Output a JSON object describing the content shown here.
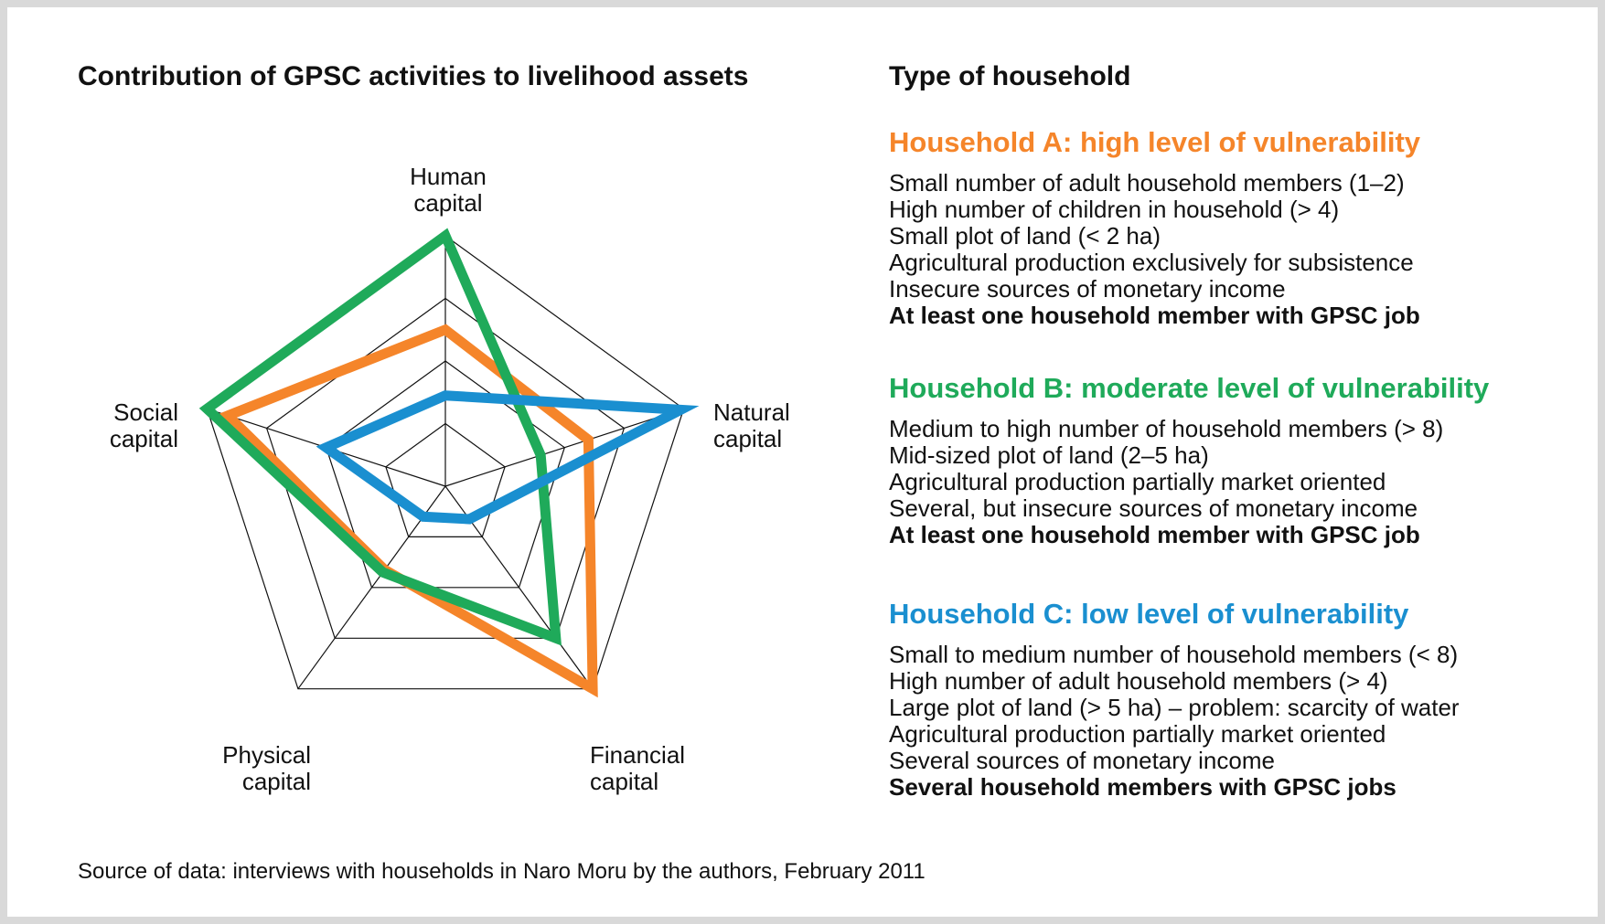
{
  "chart_data": {
    "type": "radar",
    "title": "Contribution of GPSC activities to livelihood assets",
    "axes": [
      "Human capital",
      "Natural capital",
      "Financial capital",
      "Physical capital",
      "Social capital"
    ],
    "axis_labels": [
      {
        "line1": "Human",
        "line2": "capital"
      },
      {
        "line1": "Natural",
        "line2": "capital"
      },
      {
        "line1": "Financial",
        "line2": "capital"
      },
      {
        "line1": "Physical",
        "line2": "capital"
      },
      {
        "line1": "Social",
        "line2": "capital"
      }
    ],
    "range": [
      0,
      4
    ],
    "rings": 4,
    "series": [
      {
        "name": "Household A: high level of vulnerability",
        "color": "#f5852a",
        "values": [
          2.5,
          2.4,
          4.0,
          1.65,
          3.65
        ]
      },
      {
        "name": "Household B: moderate level of vulnerability",
        "color": "#1faa5a",
        "values": [
          4.0,
          1.6,
          3.0,
          1.7,
          4.0
        ]
      },
      {
        "name": "Household C: low level of vulnerability",
        "color": "#1a8fd0",
        "values": [
          1.45,
          3.95,
          0.65,
          0.6,
          2.0
        ]
      }
    ]
  },
  "legend": {
    "title": "Type of household",
    "households": [
      {
        "title": "Household A: high level of vulnerability",
        "color": "#f5852a",
        "lines": [
          "Small number of adult household members (1–2)",
          "High number of children in household (> 4)",
          "Small plot of land (< 2 ha)",
          "Agricultural production exclusively for subsistence",
          "Insecure sources of monetary income"
        ],
        "bold_line": "At least one household member with GPSC job"
      },
      {
        "title": "Household B: moderate level of vulnerability",
        "color": "#1faa5a",
        "lines": [
          "Medium to high number of household members (> 8)",
          "Mid-sized plot of land (2–5 ha)",
          "Agricultural production partially market oriented",
          "Several, but insecure sources of monetary income"
        ],
        "bold_line": "At least one household member with GPSC job"
      },
      {
        "title": "Household C: low level of vulnerability",
        "color": "#1a8fd0",
        "lines": [
          "Small to medium number of household members (< 8)",
          "High number of adult household members (> 4)",
          "Large plot of land (> 5 ha) – problem: scarcity of water",
          "Agricultural production partially market oriented",
          "Several sources of monetary income"
        ],
        "bold_line": "Several household members with GPSC jobs"
      }
    ]
  },
  "source": "Source of data: interviews with households in Naro Moru by the authors, February 2011"
}
